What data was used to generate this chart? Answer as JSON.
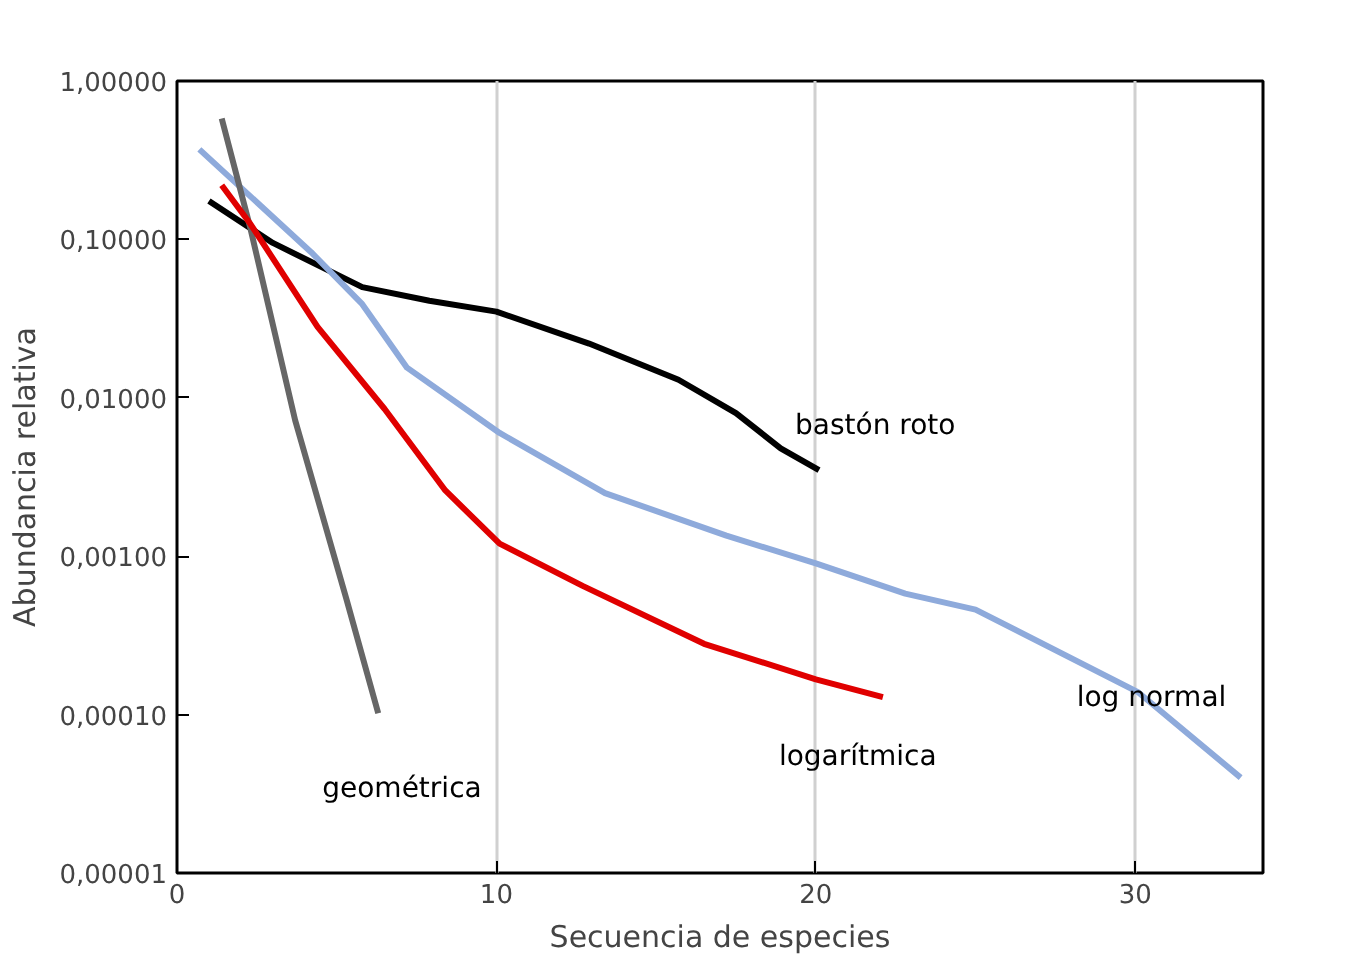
{
  "chart_data": {
    "type": "line",
    "xlabel": "Secuencia de especies",
    "ylabel": "Abundancia relativa",
    "log": "y",
    "grid": "x",
    "legend": false,
    "marker": "none",
    "line_style": "solid",
    "xlim": [
      0,
      34
    ],
    "xticks": [
      0,
      10,
      20,
      30
    ],
    "ylim": [
      1e-05,
      1
    ],
    "yticks": [
      {
        "value": 1e-05,
        "label": "0,00001"
      },
      {
        "value": 0.0001,
        "label": "0,00010"
      },
      {
        "value": 0.001,
        "label": "0,00100"
      },
      {
        "value": 0.01,
        "label": "0,01000"
      },
      {
        "value": 0.1,
        "label": "0,10000"
      },
      {
        "value": 1,
        "label": "1,00000"
      }
    ],
    "series": [
      {
        "name": "bastón roto",
        "color": "#000000",
        "x": [
          1.0,
          3.0,
          5.8,
          7.9,
          10,
          12.9,
          15.7,
          17.5,
          18.9,
          20.1
        ],
        "values": [
          0.175,
          0.095,
          0.05,
          0.041,
          0.035,
          0.022,
          0.013,
          0.008,
          0.0048,
          0.0035
        ]
      },
      {
        "name": "log normal",
        "color": "#8eaadb",
        "x": [
          0.7,
          4.2,
          5.8,
          7.2,
          10.1,
          13.4,
          17.2,
          20,
          22.8,
          25,
          30.1,
          33.3
        ],
        "values": [
          0.37,
          0.083,
          0.039,
          0.0155,
          0.006,
          0.0025,
          0.00135,
          0.0009,
          0.00058,
          0.00046,
          0.000138,
          4e-05
        ]
      },
      {
        "name": "geométrica",
        "color": "#666666",
        "x": [
          1.4,
          2.3,
          3.7,
          5.3,
          6.3
        ],
        "values": [
          0.58,
          0.117,
          0.0072,
          0.00054,
          0.000102
        ]
      },
      {
        "name": "logarítmica",
        "color": "#e00000",
        "x": [
          1.4,
          2.3,
          4.4,
          6.5,
          8.4,
          10.1,
          12.7,
          16.5,
          20,
          22.1
        ],
        "values": [
          0.22,
          0.125,
          0.028,
          0.0085,
          0.0026,
          0.0012,
          0.00065,
          0.00028,
          0.000167,
          0.000129
        ]
      }
    ]
  }
}
